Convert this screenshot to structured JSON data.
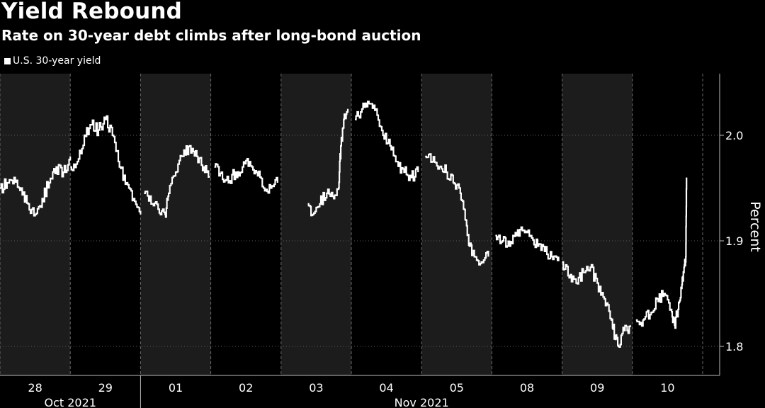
{
  "header": {
    "title": "Yield Rebound",
    "subtitle": "Rate on 30-year debt climbs after long-bond auction"
  },
  "colors": {
    "background": "#000000",
    "shade_band": "#1c1c1c",
    "line": "#ffffff",
    "grid": "#5a5a5a"
  },
  "chart_data": {
    "type": "line",
    "title": "Yield Rebound",
    "subtitle": "Rate on 30-year debt climbs after long-bond auction",
    "ylabel": "Percent",
    "ylim": [
      1.79,
      2.06
    ],
    "yticks": [
      1.8,
      1.9,
      2.0
    ],
    "ytick_labels": [
      "1.8",
      "1.9",
      "2.0"
    ],
    "grid": true,
    "legend_position": "top-left",
    "categories": [
      "28",
      "29",
      "01",
      "02",
      "03",
      "04",
      "05",
      "08",
      "09",
      "10"
    ],
    "month_labels": [
      {
        "label": "Oct 2021",
        "day_index": 0.5
      },
      {
        "label": "Nov 2021",
        "day_index": 5.5
      }
    ],
    "series": [
      {
        "name": "U.S. 30-year yield",
        "days": [
          {
            "day": "28",
            "points": [
              [
                0.0,
                1.95
              ],
              [
                0.1,
                1.955
              ],
              [
                0.2,
                1.96
              ],
              [
                0.3,
                1.95
              ],
              [
                0.4,
                1.935
              ],
              [
                0.5,
                1.925
              ],
              [
                0.6,
                1.94
              ],
              [
                0.7,
                1.955
              ],
              [
                0.8,
                1.97
              ],
              [
                0.9,
                1.965
              ],
              [
                1.0,
                1.98
              ]
            ]
          },
          {
            "day": "29",
            "points": [
              [
                0.0,
                1.97
              ],
              [
                0.1,
                1.975
              ],
              [
                0.2,
                2.0
              ],
              [
                0.3,
                2.01
              ],
              [
                0.4,
                2.005
              ],
              [
                0.5,
                2.015
              ],
              [
                0.6,
                2.0
              ],
              [
                0.7,
                1.97
              ],
              [
                0.8,
                1.955
              ],
              [
                0.9,
                1.94
              ],
              [
                1.0,
                1.925
              ]
            ]
          },
          {
            "day": "01",
            "points": [
              [
                0.05,
                1.945
              ],
              [
                0.15,
                1.935
              ],
              [
                0.25,
                1.93
              ],
              [
                0.35,
                1.925
              ],
              [
                0.4,
                1.945
              ],
              [
                0.5,
                1.965
              ],
              [
                0.6,
                1.98
              ],
              [
                0.7,
                1.99
              ],
              [
                0.8,
                1.98
              ],
              [
                0.9,
                1.97
              ],
              [
                0.98,
                1.96
              ]
            ]
          },
          {
            "day": "02",
            "points": [
              [
                0.05,
                1.97
              ],
              [
                0.15,
                1.965
              ],
              [
                0.25,
                1.955
              ],
              [
                0.35,
                1.965
              ],
              [
                0.45,
                1.97
              ],
              [
                0.55,
                1.975
              ],
              [
                0.65,
                1.965
              ],
              [
                0.75,
                1.95
              ],
              [
                0.85,
                1.95
              ],
              [
                0.95,
                1.955
              ]
            ]
          },
          {
            "day": "03",
            "points": [
              [
                0.38,
                1.935
              ],
              [
                0.45,
                1.925
              ],
              [
                0.55,
                1.935
              ],
              [
                0.65,
                1.945
              ],
              [
                0.75,
                1.94
              ],
              [
                0.82,
                1.95
              ],
              [
                0.85,
                1.99
              ],
              [
                0.9,
                2.02
              ],
              [
                0.95,
                2.025
              ]
            ]
          },
          {
            "day": "04",
            "points": [
              [
                0.05,
                2.015
              ],
              [
                0.15,
                2.025
              ],
              [
                0.25,
                2.03
              ],
              [
                0.35,
                2.025
              ],
              [
                0.45,
                2.0
              ],
              [
                0.55,
                1.99
              ],
              [
                0.65,
                1.975
              ],
              [
                0.75,
                1.965
              ],
              [
                0.85,
                1.96
              ],
              [
                0.95,
                1.965
              ]
            ]
          },
          {
            "day": "05",
            "points": [
              [
                0.05,
                1.98
              ],
              [
                0.15,
                1.975
              ],
              [
                0.25,
                1.97
              ],
              [
                0.35,
                1.965
              ],
              [
                0.45,
                1.955
              ],
              [
                0.55,
                1.945
              ],
              [
                0.62,
                1.92
              ],
              [
                0.68,
                1.895
              ],
              [
                0.75,
                1.885
              ],
              [
                0.85,
                1.88
              ],
              [
                0.95,
                1.885
              ]
            ]
          },
          {
            "day": "08",
            "points": [
              [
                0.05,
                1.905
              ],
              [
                0.15,
                1.9
              ],
              [
                0.25,
                1.895
              ],
              [
                0.35,
                1.905
              ],
              [
                0.45,
                1.91
              ],
              [
                0.55,
                1.905
              ],
              [
                0.65,
                1.895
              ],
              [
                0.75,
                1.89
              ],
              [
                0.85,
                1.885
              ],
              [
                0.95,
                1.885
              ]
            ]
          },
          {
            "day": "09",
            "points": [
              [
                0.0,
                1.88
              ],
              [
                0.1,
                1.865
              ],
              [
                0.2,
                1.86
              ],
              [
                0.3,
                1.87
              ],
              [
                0.4,
                1.875
              ],
              [
                0.5,
                1.86
              ],
              [
                0.6,
                1.845
              ],
              [
                0.7,
                1.825
              ],
              [
                0.75,
                1.81
              ],
              [
                0.8,
                1.8
              ],
              [
                0.88,
                1.815
              ],
              [
                0.97,
                1.82
              ]
            ]
          },
          {
            "day": "10",
            "points": [
              [
                0.05,
                1.825
              ],
              [
                0.15,
                1.825
              ],
              [
                0.25,
                1.83
              ],
              [
                0.35,
                1.845
              ],
              [
                0.45,
                1.85
              ],
              [
                0.55,
                1.835
              ],
              [
                0.6,
                1.82
              ],
              [
                0.65,
                1.835
              ],
              [
                0.7,
                1.855
              ],
              [
                0.73,
                1.87
              ],
              [
                0.76,
                1.885
              ],
              [
                0.77,
                1.96
              ]
            ]
          }
        ]
      }
    ]
  }
}
